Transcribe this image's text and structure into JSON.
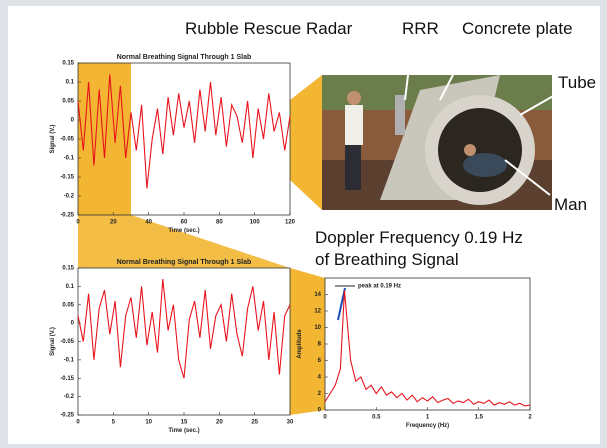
{
  "annotations": {
    "radar": "Rubble Rescue Radar",
    "rrr": "RRR",
    "plate": "Concrete plate",
    "tube": "Tube",
    "man": "Man",
    "doppler": "Doppler Frequency 0.19 Hz",
    "doppler_line2": "of Breathing Signal"
  },
  "chart_data": [
    {
      "type": "line",
      "title": "Normal Breathing Signal Through 1 Slab",
      "xlabel": "Time (sec.)",
      "ylabel": "Signal (V.)",
      "x": [
        0,
        3,
        6,
        9,
        12,
        15,
        18,
        21,
        24,
        27,
        30,
        33,
        36,
        39,
        42,
        45,
        48,
        51,
        54,
        57,
        60,
        63,
        66,
        69,
        72,
        75,
        78,
        81,
        84,
        87,
        90,
        93,
        96,
        99,
        102,
        105,
        108,
        111,
        114,
        117,
        120
      ],
      "series": [
        {
          "color": "#e8141c",
          "values": [
            0.05,
            -0.08,
            0.1,
            -0.12,
            0.08,
            -0.1,
            0.12,
            -0.06,
            0.09,
            -0.1,
            0.02,
            -0.08,
            0.04,
            -0.18,
            -0.05,
            0.03,
            -0.09,
            0.06,
            -0.04,
            0.07,
            -0.02,
            0.05,
            -0.06,
            0.08,
            -0.03,
            0.1,
            -0.04,
            0.06,
            -0.07,
            0.04,
            0.01,
            -0.06,
            0.05,
            -0.1,
            0.03,
            -0.05,
            0.07,
            -0.03,
            0.02,
            -0.08,
            0.01
          ]
        }
      ],
      "xlim": [
        0,
        120
      ],
      "xticks": [
        0,
        20,
        40,
        60,
        80,
        100,
        120
      ],
      "ylim": [
        -0.25,
        0.15
      ],
      "yticks": [
        -0.25,
        -0.2,
        -0.15,
        -0.1,
        -0.05,
        0,
        0.05,
        0.1,
        0.15
      ]
    },
    {
      "type": "line",
      "title": "Normal Breathing Signal Through 1 Slab",
      "xlabel": "Time (sec.)",
      "ylabel": "Signal (V.)",
      "x": [
        0,
        0.75,
        1.5,
        2.25,
        3,
        3.75,
        4.5,
        5.25,
        6,
        6.75,
        7.5,
        8.25,
        9,
        9.75,
        10.5,
        11.25,
        12,
        12.75,
        13.5,
        14.25,
        15,
        15.75,
        16.5,
        17.25,
        18,
        18.75,
        19.5,
        20.25,
        21,
        21.75,
        22.5,
        23.25,
        24,
        24.75,
        25.5,
        26.25,
        27,
        27.75,
        28.5,
        29.25,
        30
      ],
      "series": [
        {
          "color": "#e8141c",
          "values": [
            0.02,
            -0.05,
            0.08,
            -0.1,
            0.04,
            0.09,
            -0.03,
            0.06,
            -0.12,
            0.02,
            0.07,
            -0.04,
            0.1,
            -0.06,
            0.03,
            -0.08,
            0.12,
            -0.02,
            0.05,
            -0.1,
            -0.15,
            0.01,
            0.06,
            -0.04,
            0.09,
            -0.07,
            0.02,
            0.05,
            -0.05,
            0.08,
            -0.03,
            -0.09,
            0.04,
            0.1,
            -0.02,
            0.06,
            -0.1,
            0.03,
            -0.14,
            0.02,
            0.05
          ]
        }
      ],
      "xlim": [
        0,
        30
      ],
      "xticks": [
        0,
        5,
        10,
        15,
        20,
        25,
        30
      ],
      "ylim": [
        -0.25,
        0.15
      ],
      "yticks": [
        -0.25,
        -0.2,
        -0.15,
        -0.1,
        -0.05,
        0,
        0.05,
        0.1,
        0.15
      ]
    },
    {
      "type": "line",
      "xlabel": "Frequency (Hz)",
      "ylabel": "Amplitude",
      "x": [
        0,
        0.05,
        0.1,
        0.15,
        0.19,
        0.25,
        0.3,
        0.35,
        0.4,
        0.45,
        0.5,
        0.55,
        0.6,
        0.65,
        0.7,
        0.75,
        0.8,
        0.85,
        0.9,
        0.95,
        1,
        1.05,
        1.1,
        1.15,
        1.2,
        1.25,
        1.3,
        1.35,
        1.4,
        1.45,
        1.5,
        1.55,
        1.6,
        1.65,
        1.7,
        1.75,
        1.8,
        1.85,
        1.9,
        1.95,
        2
      ],
      "series": [
        {
          "name": "peak at 0.19 Hz",
          "color": "#e8141c",
          "values": [
            1,
            2,
            3,
            5,
            14.5,
            6,
            3.5,
            4,
            2.5,
            3,
            2,
            2.8,
            1.8,
            2.2,
            1.5,
            2,
            1.2,
            1.8,
            1,
            1.5,
            1.1,
            1.6,
            0.9,
            1.2,
            1.4,
            0.8,
            1.1,
            0.9,
            1.3,
            0.7,
            1,
            0.8,
            1.2,
            0.6,
            0.9,
            0.7,
            1,
            0.6,
            0.8,
            0.5,
            0.6
          ]
        }
      ],
      "xlim": [
        0,
        2
      ],
      "xticks": [
        0,
        0.5,
        1,
        1.5,
        2
      ],
      "ylim": [
        0,
        16
      ],
      "yticks": [
        0,
        2,
        4,
        6,
        8,
        10,
        12,
        14
      ]
    }
  ]
}
